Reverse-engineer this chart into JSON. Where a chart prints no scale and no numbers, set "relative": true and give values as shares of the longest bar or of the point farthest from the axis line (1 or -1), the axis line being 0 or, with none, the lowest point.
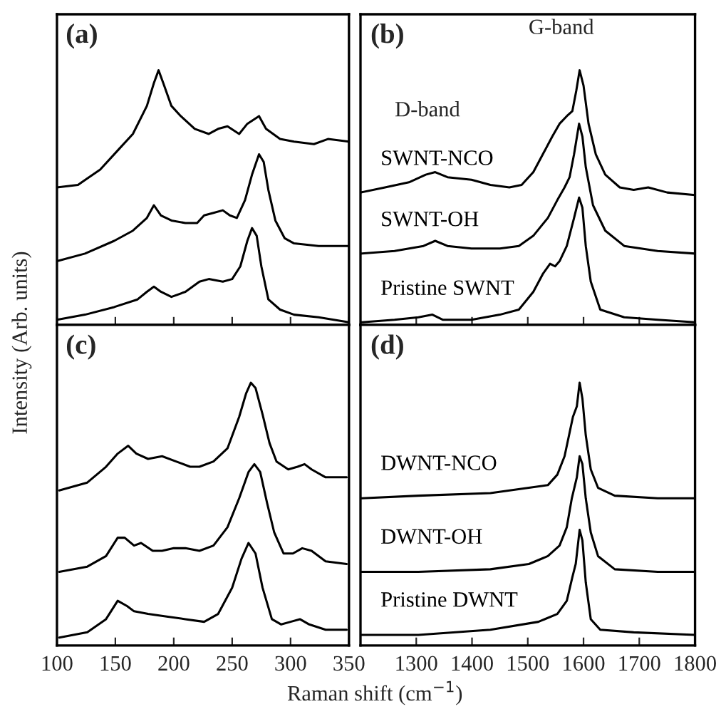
{
  "chart_data": [
    {
      "type": "line",
      "title": "(a)",
      "relative": true,
      "ylabel": "Intensity (Arb. units)",
      "xlim": [
        100,
        350
      ],
      "xticks": [
        100,
        150,
        200,
        250,
        300,
        350
      ],
      "tick_labels": false,
      "series": [
        {
          "color": "#000000",
          "x": [
            100,
            118,
            137,
            153,
            165,
            177,
            183,
            187,
            191,
            198,
            206,
            218,
            230,
            238,
            246,
            256,
            263,
            273,
            279,
            291,
            303,
            320,
            332,
            350
          ],
          "values": [
            0.54,
            0.55,
            0.61,
            0.69,
            0.75,
            0.86,
            0.95,
            1.0,
            0.95,
            0.86,
            0.82,
            0.77,
            0.75,
            0.77,
            0.78,
            0.75,
            0.79,
            0.82,
            0.77,
            0.73,
            0.72,
            0.71,
            0.73,
            0.72
          ]
        },
        {
          "color": "#000000",
          "x": [
            100,
            124,
            149,
            165,
            177,
            183,
            189,
            198,
            210,
            220,
            226,
            234,
            242,
            248,
            254,
            261,
            267,
            273,
            277,
            281,
            287,
            295,
            303,
            324,
            350
          ],
          "values": [
            0.25,
            0.28,
            0.33,
            0.37,
            0.42,
            0.47,
            0.43,
            0.41,
            0.4,
            0.4,
            0.43,
            0.44,
            0.45,
            0.43,
            0.42,
            0.49,
            0.59,
            0.67,
            0.64,
            0.53,
            0.41,
            0.34,
            0.32,
            0.31,
            0.31
          ]
        },
        {
          "color": "#000000",
          "x": [
            100,
            124,
            149,
            169,
            177,
            183,
            189,
            198,
            210,
            222,
            230,
            242,
            250,
            257,
            263,
            267,
            271,
            275,
            281,
            291,
            303,
            324,
            350
          ],
          "values": [
            0.02,
            0.04,
            0.07,
            0.1,
            0.13,
            0.15,
            0.13,
            0.11,
            0.13,
            0.17,
            0.18,
            0.17,
            0.18,
            0.23,
            0.33,
            0.38,
            0.35,
            0.23,
            0.1,
            0.06,
            0.04,
            0.03,
            0.01
          ]
        }
      ]
    },
    {
      "type": "line",
      "title": "(b)",
      "relative": true,
      "xlim": [
        1200,
        1800
      ],
      "xticks": [
        1300,
        1400,
        1500,
        1600,
        1700,
        1800
      ],
      "tick_labels": false,
      "annotations": [
        "G-band",
        "D-band"
      ],
      "series": [
        {
          "name": "SWNT-NCO",
          "color": "#000000",
          "x": [
            1200,
            1244,
            1287,
            1317,
            1334,
            1356,
            1399,
            1433,
            1467,
            1489,
            1510,
            1527,
            1544,
            1557,
            1570,
            1580,
            1587,
            1593,
            1600,
            1609,
            1622,
            1639,
            1665,
            1690,
            1716,
            1750,
            1800
          ],
          "values": [
            0.52,
            0.54,
            0.56,
            0.59,
            0.6,
            0.58,
            0.57,
            0.55,
            0.54,
            0.55,
            0.6,
            0.67,
            0.74,
            0.79,
            0.82,
            0.84,
            0.92,
            1.0,
            0.94,
            0.79,
            0.67,
            0.59,
            0.54,
            0.53,
            0.54,
            0.52,
            0.51
          ]
        },
        {
          "name": "SWNT-OH",
          "color": "#000000",
          "x": [
            1200,
            1261,
            1313,
            1334,
            1356,
            1399,
            1450,
            1484,
            1510,
            1536,
            1553,
            1566,
            1575,
            1583,
            1592,
            1598,
            1604,
            1617,
            1639,
            1673,
            1733,
            1800
          ],
          "values": [
            0.28,
            0.29,
            0.31,
            0.33,
            0.31,
            0.3,
            0.3,
            0.31,
            0.35,
            0.42,
            0.49,
            0.54,
            0.58,
            0.67,
            0.79,
            0.74,
            0.62,
            0.47,
            0.37,
            0.31,
            0.29,
            0.28
          ]
        },
        {
          "name": "Pristine SWNT",
          "color": "#000000",
          "x": [
            1200,
            1261,
            1304,
            1329,
            1348,
            1399,
            1450,
            1484,
            1510,
            1527,
            1540,
            1549,
            1557,
            1570,
            1583,
            1592,
            1598,
            1604,
            1613,
            1630,
            1673,
            1733,
            1800
          ],
          "values": [
            0.01,
            0.02,
            0.03,
            0.04,
            0.02,
            0.02,
            0.04,
            0.06,
            0.13,
            0.2,
            0.24,
            0.23,
            0.25,
            0.31,
            0.42,
            0.5,
            0.46,
            0.31,
            0.17,
            0.06,
            0.03,
            0.02,
            0.01
          ]
        }
      ]
    },
    {
      "type": "line",
      "title": "(c)",
      "relative": true,
      "xlim": [
        100,
        350
      ],
      "xticks": [
        100,
        150,
        200,
        250,
        300,
        350
      ],
      "tick_labels": "x",
      "series": [
        {
          "color": "#000000",
          "x": [
            102,
            126,
            142,
            152,
            161,
            168,
            178,
            190,
            202,
            214,
            222,
            234,
            246,
            256,
            262,
            266,
            270,
            276,
            282,
            288,
            298,
            306,
            312,
            318,
            330,
            348
          ],
          "values": [
            0.59,
            0.62,
            0.68,
            0.73,
            0.76,
            0.73,
            0.71,
            0.72,
            0.7,
            0.68,
            0.68,
            0.7,
            0.75,
            0.87,
            0.96,
            1.0,
            0.98,
            0.88,
            0.77,
            0.7,
            0.67,
            0.68,
            0.69,
            0.67,
            0.64,
            0.64
          ]
        },
        {
          "color": "#000000",
          "x": [
            102,
            126,
            142,
            152,
            158,
            166,
            172,
            182,
            190,
            200,
            210,
            222,
            234,
            246,
            256,
            264,
            269,
            274,
            280,
            286,
            294,
            302,
            310,
            318,
            330,
            348
          ],
          "values": [
            0.28,
            0.3,
            0.34,
            0.41,
            0.41,
            0.38,
            0.39,
            0.36,
            0.36,
            0.37,
            0.37,
            0.36,
            0.38,
            0.45,
            0.56,
            0.66,
            0.69,
            0.66,
            0.54,
            0.43,
            0.35,
            0.35,
            0.37,
            0.36,
            0.32,
            0.31
          ]
        },
        {
          "color": "#000000",
          "x": [
            102,
            126,
            142,
            152,
            160,
            166,
            178,
            194,
            210,
            226,
            238,
            250,
            258,
            264,
            270,
            276,
            284,
            292,
            300,
            308,
            316,
            330,
            348
          ],
          "values": [
            0.03,
            0.05,
            0.1,
            0.17,
            0.15,
            0.13,
            0.12,
            0.11,
            0.1,
            0.09,
            0.12,
            0.22,
            0.33,
            0.39,
            0.35,
            0.22,
            0.1,
            0.08,
            0.09,
            0.1,
            0.08,
            0.06,
            0.06
          ]
        }
      ]
    },
    {
      "type": "line",
      "title": "(d)",
      "relative": true,
      "xlabel": "Raman shift (cm$^{−1}$)",
      "xlim": [
        1200,
        1800
      ],
      "xticks": [
        1300,
        1400,
        1500,
        1600,
        1700,
        1800
      ],
      "tick_labels": "x",
      "series": [
        {
          "name": "DWNT-NCO",
          "color": "#000000",
          "x": [
            1200,
            1304,
            1433,
            1502,
            1536,
            1553,
            1566,
            1575,
            1581,
            1588,
            1593,
            1598,
            1604,
            1613,
            1626,
            1656,
            1733,
            1800
          ],
          "values": [
            0.56,
            0.57,
            0.58,
            0.6,
            0.61,
            0.65,
            0.72,
            0.81,
            0.87,
            0.91,
            1.0,
            0.94,
            0.8,
            0.67,
            0.6,
            0.57,
            0.56,
            0.56
          ]
        },
        {
          "name": "DWNT-OH",
          "color": "#000000",
          "x": [
            1200,
            1304,
            1433,
            1502,
            1536,
            1557,
            1570,
            1579,
            1588,
            1593,
            1598,
            1604,
            1613,
            1626,
            1656,
            1733,
            1800
          ],
          "values": [
            0.28,
            0.28,
            0.29,
            0.31,
            0.34,
            0.38,
            0.45,
            0.56,
            0.64,
            0.72,
            0.69,
            0.56,
            0.43,
            0.34,
            0.29,
            0.28,
            0.28
          ]
        },
        {
          "name": "Pristine DWNT",
          "color": "#000000",
          "x": [
            1200,
            1304,
            1433,
            1519,
            1553,
            1570,
            1580,
            1586,
            1593,
            1598,
            1604,
            1613,
            1630,
            1690,
            1800
          ],
          "values": [
            0.04,
            0.04,
            0.06,
            0.09,
            0.12,
            0.17,
            0.26,
            0.31,
            0.44,
            0.4,
            0.24,
            0.1,
            0.06,
            0.05,
            0.04
          ]
        }
      ]
    }
  ]
}
